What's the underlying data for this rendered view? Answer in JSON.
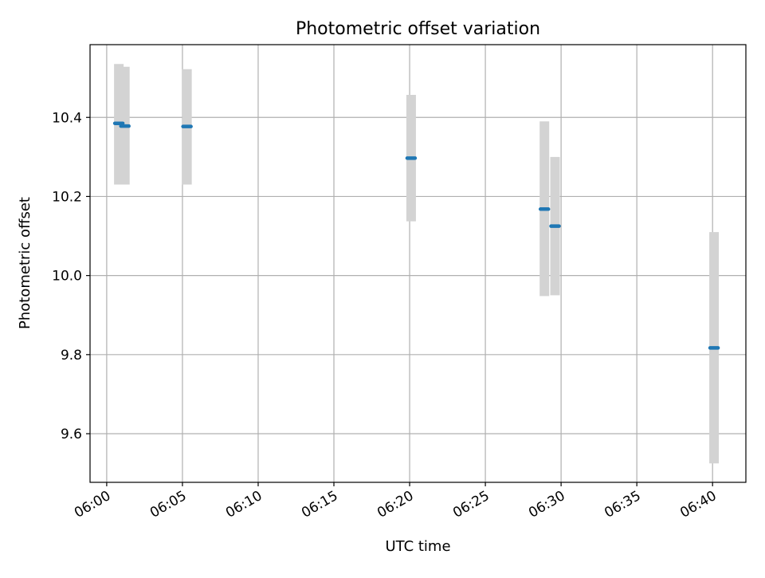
{
  "chart_data": {
    "type": "scatter",
    "title": "Photometric offset variation",
    "xlabel": "UTC time",
    "ylabel": "Photometric offset",
    "x_unit": "UTC clock time",
    "xlim": [
      "05:58:54",
      "06:42:12"
    ],
    "ylim": [
      9.477,
      10.584
    ],
    "x_ticks": [
      "06:00",
      "06:05",
      "06:10",
      "06:15",
      "06:20",
      "06:25",
      "06:30",
      "06:35",
      "06:40"
    ],
    "y_ticks": [
      "9.6",
      "9.8",
      "10.0",
      "10.2",
      "10.4"
    ],
    "grid": true,
    "legend": "none",
    "colors": {
      "points": "#1f77b4",
      "error_bands": "#d3d3d3",
      "grid": "#b0b0b0"
    },
    "series": [
      {
        "points": [
          {
            "x": "06:00:48",
            "y": 10.385,
            "ymin": 10.23,
            "ymax": 10.535
          },
          {
            "x": "06:01:12",
            "y": 10.378,
            "ymin": 10.23,
            "ymax": 10.528
          },
          {
            "x": "06:05:18",
            "y": 10.377,
            "ymin": 10.23,
            "ymax": 10.522
          },
          {
            "x": "06:20:06",
            "y": 10.297,
            "ymin": 10.137,
            "ymax": 10.457
          },
          {
            "x": "06:28:54",
            "y": 10.168,
            "ymin": 9.948,
            "ymax": 10.39
          },
          {
            "x": "06:29:36",
            "y": 10.125,
            "ymin": 9.95,
            "ymax": 10.3
          },
          {
            "x": "06:40:06",
            "y": 9.817,
            "ymin": 9.525,
            "ymax": 10.11
          }
        ]
      }
    ]
  }
}
